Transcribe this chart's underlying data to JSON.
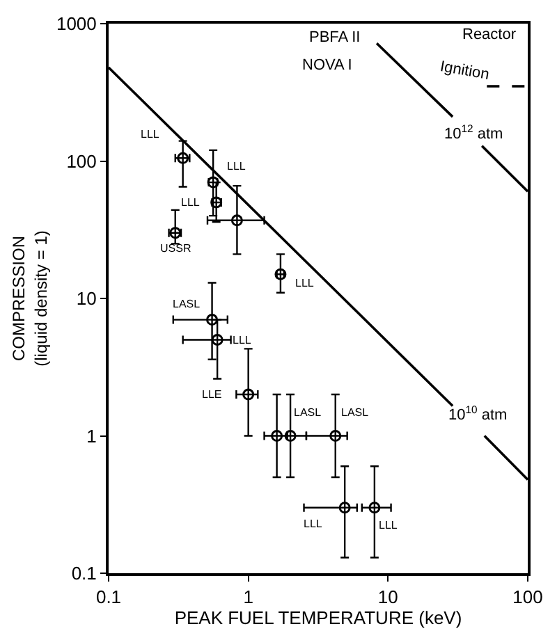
{
  "chart_data": {
    "type": "scatter",
    "xlabel": "PEAK FUEL TEMPERATURE (keV)",
    "ylabel": "COMPRESSION\n(liquid density = 1)",
    "log": "xy",
    "xlim": [
      0.1,
      100
    ],
    "ylim": [
      0.1,
      1000
    ],
    "xticks": [
      0.1,
      1,
      10,
      100
    ],
    "yticks": [
      0.1,
      1,
      10,
      100,
      1000
    ],
    "grid": false,
    "series": [
      {
        "color": "#000000",
        "marker": "circle",
        "x": [
          0.34,
          0.56,
          0.59,
          0.83,
          0.3,
          1.7,
          0.55,
          0.6,
          1.0,
          1.6,
          2.0,
          4.2,
          4.9,
          8.0
        ],
        "values": [
          105,
          70,
          50,
          37,
          30,
          15,
          7,
          5,
          2,
          1,
          1,
          1,
          0.3,
          0.3
        ],
        "errors": [
          [
            65,
            140
          ],
          [
            40,
            120
          ],
          [
            36,
            70
          ],
          [
            21,
            66
          ],
          [
            25,
            44
          ],
          [
            11,
            21
          ],
          [
            3.6,
            13
          ],
          [
            2.6,
            7
          ],
          [
            1,
            4.3
          ],
          [
            0.5,
            2
          ],
          [
            0.5,
            2
          ],
          [
            0.5,
            2
          ],
          [
            0.13,
            0.6
          ],
          [
            0.13,
            0.6
          ]
        ],
        "xerrors": [
          [
            0.3,
            0.38
          ],
          [
            0.52,
            0.6
          ],
          [
            0.55,
            0.64
          ],
          [
            0.51,
            1.3
          ],
          [
            0.27,
            0.33
          ],
          [
            1.6,
            1.8
          ],
          [
            0.29,
            0.71
          ],
          [
            0.34,
            0.75
          ],
          [
            0.82,
            1.17
          ],
          [
            1.3,
            1.9
          ],
          [
            1.9,
            2.6
          ],
          [
            2.6,
            5.1
          ],
          [
            2.5,
            6
          ],
          [
            6.5,
            10.5
          ]
        ]
      },
      {
        "type": "line",
        "color": "#000000",
        "line_style": "solid",
        "x": [
          0.1,
          29,
          38,
          49,
          100
        ],
        "values": [
          480,
          1.65,
          null,
          1.0,
          0.48
        ]
      },
      {
        "type": "line",
        "color": "#000000",
        "line_style": "solid",
        "x": [
          8.3,
          29,
          38,
          47,
          100
        ],
        "values": [
          720,
          210,
          null,
          129,
          60
        ]
      },
      {
        "type": "line",
        "color": "#000000",
        "line_style": "dashed",
        "x": [
          51,
          100
        ],
        "values": [
          350,
          350
        ]
      }
    ],
    "annotations": [
      {
        "text": "LLL",
        "x": 0.34,
        "y": 105
      },
      {
        "text": "LLL",
        "x": 0.56,
        "y": 70
      },
      {
        "text": "LLL",
        "x": 0.59,
        "y": 50
      },
      {
        "text": "USSR",
        "x": 0.3,
        "y": 30
      },
      {
        "text": "LLL",
        "x": 1.7,
        "y": 15
      },
      {
        "text": "LASL",
        "x": 0.55,
        "y": 7
      },
      {
        "text": "LLL",
        "x": 0.6,
        "y": 5
      },
      {
        "text": "LLE",
        "x": 1.0,
        "y": 2
      },
      {
        "text": "LASL",
        "x": 2.0,
        "y": 1
      },
      {
        "text": "LASL",
        "x": 4.2,
        "y": 1
      },
      {
        "text": "LLL",
        "x": 4.9,
        "y": 0.3
      },
      {
        "text": "LLL",
        "x": 8.0,
        "y": 0.3
      },
      "PBFA II",
      "NOVA I",
      "Reactor",
      "Ignition",
      "10$^{12}$ atm",
      "10$^{10}$ atm"
    ]
  }
}
